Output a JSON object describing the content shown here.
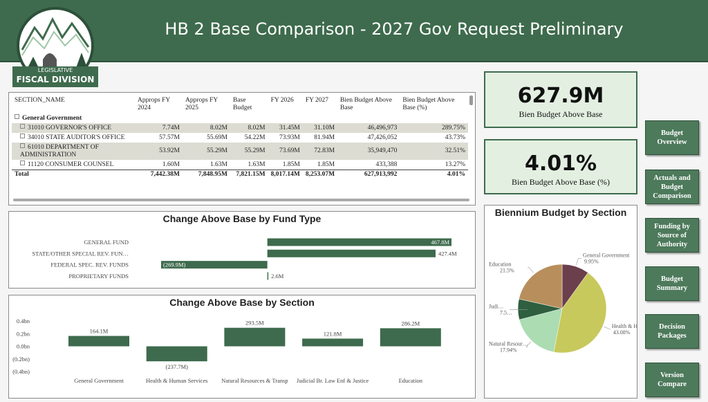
{
  "header": {
    "title": "HB 2 Base Comparison - 2027 Gov Request Preliminary",
    "logo": [
      "LEGISLATIVE",
      "FISCAL DIVISION"
    ]
  },
  "table": {
    "columns": [
      "SECTION_NAME",
      "Approps FY 2024",
      "Approps FY 2025",
      "Base Budget",
      "FY 2026",
      "FY 2027",
      "Bien Budget Above Base",
      "Bien Budget Above Base (%)"
    ],
    "group": "General Government",
    "rows": [
      [
        "31010 GOVERNOR'S OFFICE",
        "7.74M",
        "8.02M",
        "8.02M",
        "31.45M",
        "31.10M",
        "46,496,973",
        "289.75%"
      ],
      [
        "34010 STATE AUDITOR'S OFFICE",
        "57.57M",
        "55.69M",
        "54.22M",
        "73.93M",
        "81.94M",
        "47,426,052",
        "43.73%"
      ],
      [
        "61010 DEPARTMENT OF ADMINISTRATION",
        "53.92M",
        "55.29M",
        "55.29M",
        "73.69M",
        "72.83M",
        "35,949,470",
        "32.51%"
      ],
      [
        "11120 CONSUMER COUNSEL",
        "1.60M",
        "1.63M",
        "1.63M",
        "1.85M",
        "1.85M",
        "433,388",
        "13.27%"
      ]
    ],
    "total": [
      "Total",
      "7,442.38M",
      "7,848.95M",
      "7,821.15M",
      "8,017.14M",
      "8,253.07M",
      "627,913,992",
      "4.01%"
    ]
  },
  "kpis": [
    {
      "value": "627.9M",
      "label": "Bien Budget Above Base"
    },
    {
      "value": "4.01%",
      "label": "Bien Budget Above Base (%)"
    }
  ],
  "nav": [
    "Budget Overview",
    "Actuals and Budget Comparison",
    "Funding by Source of Authority",
    "Budget Summary",
    "Decision Packages",
    "Version Compare"
  ],
  "chart_data": [
    {
      "type": "hbar",
      "title": "Change Above Base by Fund Type",
      "categories": [
        "GENERAL FUND",
        "STATE/OTHER SPECIAL REV. FUN…",
        "FEDERAL SPEC. REV. FUNDS",
        "PROPRIETARY FUNDS"
      ],
      "values": [
        467.8,
        427.4,
        -269.9,
        2.6
      ],
      "value_labels": [
        "467.8M",
        "427.4M",
        "(269.9M)",
        "2.6M"
      ],
      "color": "#3e6b4d"
    },
    {
      "type": "bar",
      "title": "Change Above Base by Section",
      "categories": [
        "General Government",
        "Health & Human Services",
        "Natural Resources & Transp",
        "Judicial Br. Law Enf & Justice",
        "Education"
      ],
      "values": [
        0.1641,
        -0.2377,
        0.2935,
        0.1218,
        0.2862
      ],
      "value_labels": [
        "164.1M",
        "(237.7M)",
        "293.5M",
        "121.8M",
        "286.2M"
      ],
      "color": "#3e6b4d",
      "ylim": [
        -0.4,
        0.4
      ],
      "yticks": [
        {
          "value": 0.4,
          "label": "0.4bn"
        },
        {
          "value": 0.2,
          "label": "0.2bn"
        },
        {
          "value": 0,
          "label": "0.0bn"
        },
        {
          "value": -0.2,
          "label": "(0.2bn)"
        },
        {
          "value": -0.4,
          "label": "(0.4bn)"
        }
      ]
    },
    {
      "type": "pie",
      "title": "Biennium Budget by Section",
      "categories": [
        "General Government",
        "Health & Hum…",
        "Natural Resour…",
        "Judi…",
        "Education"
      ],
      "values": [
        9.95,
        43.08,
        17.94,
        7.53,
        21.5
      ],
      "value_labels": [
        "9.95%",
        "43.08%",
        "17.94%",
        "7.5…",
        "21.5%"
      ],
      "colors": [
        "#6b3f4c",
        "#c8c95c",
        "#abdcb2",
        "#2f5f3f",
        "#b88f5c"
      ]
    }
  ]
}
